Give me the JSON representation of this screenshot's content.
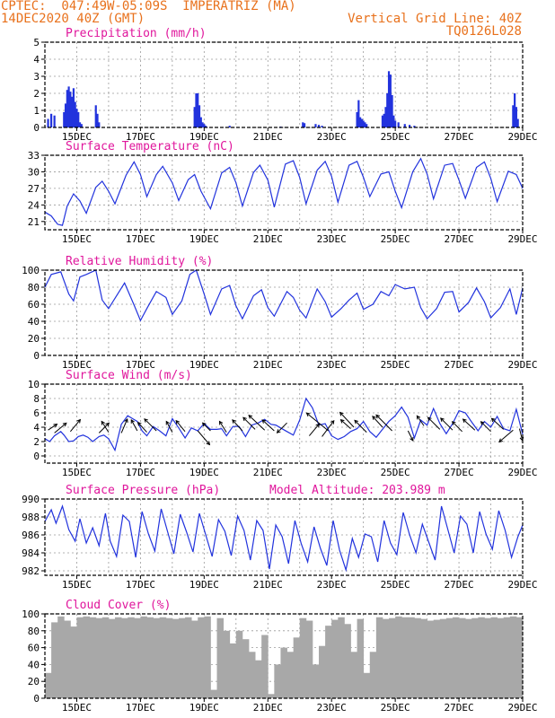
{
  "header": {
    "line1_left": "CPTEC:  047:49W-05:09S  IMPERATRIZ (MA)",
    "line2_left": "14DEC2020 40Z (GMT)",
    "line1_right": "Vertical Grid Line: 40Z",
    "line2_right": "TQ0126L028"
  },
  "colors": {
    "header": "#e8711c",
    "title": "#e0169c",
    "series": "#2233dd",
    "cloud": "#a8a8a8",
    "grid": "#9a9a9a"
  },
  "x_tick_labels": [
    "15DEC",
    "17DEC",
    "19DEC",
    "21DEC",
    "23DEC",
    "25DEC",
    "27DEC",
    "29DEC"
  ],
  "chart_data": [
    {
      "type": "bar",
      "title": "Precipitation (mm/h)",
      "ylim": [
        0,
        5
      ],
      "yticks": [
        0,
        1,
        2,
        3,
        4,
        5
      ],
      "xlim": [
        14,
        29
      ],
      "grid": true,
      "x": [
        14.1,
        14.2,
        14.3,
        14.6,
        14.65,
        14.7,
        14.75,
        14.8,
        14.85,
        14.9,
        14.95,
        15.0,
        15.05,
        15.1,
        15.15,
        15.6,
        15.65,
        15.7,
        18.7,
        18.75,
        18.8,
        18.85,
        18.9,
        18.95,
        19.0,
        19.05,
        19.8,
        21.4,
        22.1,
        22.15,
        22.5,
        22.6,
        22.7,
        23.8,
        23.85,
        23.9,
        23.95,
        24.0,
        24.05,
        24.1,
        24.6,
        24.65,
        24.7,
        24.75,
        24.8,
        24.85,
        24.9,
        24.95,
        25.0,
        25.1,
        25.3,
        25.45,
        25.6,
        28.7,
        28.75,
        28.8,
        28.85
      ],
      "values": [
        0.5,
        0.8,
        0.7,
        0.9,
        1.4,
        2.2,
        2.4,
        2.1,
        1.8,
        2.3,
        1.5,
        1.1,
        0.9,
        0.3,
        0.2,
        1.3,
        0.8,
        0.3,
        1.2,
        2.0,
        2.0,
        1.3,
        0.6,
        0.3,
        0.2,
        0.1,
        0.1,
        0.05,
        0.3,
        0.25,
        0.2,
        0.15,
        0.1,
        0.9,
        1.6,
        0.6,
        0.5,
        0.4,
        0.3,
        0.2,
        0.7,
        0.8,
        1.2,
        2.0,
        3.3,
        3.1,
        1.9,
        0.7,
        0.4,
        0.3,
        0.2,
        0.15,
        0.1,
        1.3,
        2.0,
        1.2,
        0.5
      ]
    },
    {
      "type": "line",
      "title": "Surface Temperature (nC)",
      "ylim": [
        19.5,
        33
      ],
      "yticks": [
        21,
        24,
        27,
        30,
        33
      ],
      "xlim": [
        14,
        29
      ],
      "grid": true,
      "x": [
        14.0,
        14.2,
        14.4,
        14.55,
        14.7,
        14.9,
        15.1,
        15.3,
        15.6,
        15.8,
        16.0,
        16.2,
        16.55,
        16.8,
        17.0,
        17.2,
        17.5,
        17.7,
        18.0,
        18.2,
        18.5,
        18.7,
        18.9,
        19.2,
        19.55,
        19.8,
        20.0,
        20.2,
        20.55,
        20.75,
        21.0,
        21.2,
        21.55,
        21.8,
        22.0,
        22.2,
        22.55,
        22.8,
        23.0,
        23.2,
        23.55,
        23.8,
        24.0,
        24.2,
        24.55,
        24.8,
        25.0,
        25.2,
        25.55,
        25.8,
        26.0,
        26.2,
        26.55,
        26.8,
        27.0,
        27.2,
        27.55,
        27.8,
        28.0,
        28.2,
        28.55,
        28.8,
        29.0
      ],
      "values": [
        22.7,
        22.0,
        20.5,
        20.3,
        23.8,
        26.0,
        24.7,
        22.5,
        27.2,
        28.3,
        26.5,
        24.2,
        29.4,
        31.8,
        29.5,
        25.5,
        29.5,
        31.0,
        28.0,
        24.8,
        28.6,
        29.5,
        26.5,
        23.3,
        29.8,
        30.8,
        28.0,
        23.8,
        29.9,
        31.2,
        28.5,
        23.6,
        31.4,
        32.0,
        29.0,
        24.2,
        30.3,
        31.9,
        29.2,
        24.5,
        31.2,
        31.9,
        29.0,
        25.5,
        29.6,
        30.0,
        26.5,
        23.5,
        30.0,
        32.4,
        29.6,
        25.1,
        31.2,
        31.5,
        28.5,
        25.2,
        30.8,
        31.8,
        28.8,
        24.6,
        30.1,
        29.5,
        27.0
      ]
    },
    {
      "type": "line",
      "title": "Relative Humidity (%)",
      "ylim": [
        0,
        100
      ],
      "yticks": [
        0,
        20,
        40,
        60,
        80,
        100
      ],
      "xlim": [
        14,
        29
      ],
      "grid": true,
      "x": [
        14.0,
        14.2,
        14.5,
        14.75,
        14.9,
        15.1,
        15.3,
        15.6,
        15.8,
        16.0,
        16.2,
        16.5,
        16.8,
        17.0,
        17.2,
        17.5,
        17.8,
        18.0,
        18.3,
        18.55,
        18.75,
        19.0,
        19.2,
        19.55,
        19.8,
        20.0,
        20.2,
        20.55,
        20.8,
        21.0,
        21.2,
        21.6,
        21.8,
        22.0,
        22.2,
        22.55,
        22.8,
        23.0,
        23.3,
        23.55,
        23.8,
        24.0,
        24.3,
        24.55,
        24.8,
        25.0,
        25.3,
        25.6,
        25.8,
        26.0,
        26.3,
        26.55,
        26.8,
        27.0,
        27.3,
        27.55,
        27.8,
        28.0,
        28.3,
        28.6,
        28.8,
        29.0
      ],
      "values": [
        80,
        95,
        98,
        72,
        64,
        92,
        95,
        100,
        65,
        55,
        67,
        85,
        59,
        41,
        55,
        75,
        68,
        48,
        64,
        95,
        100,
        72,
        48,
        78,
        82,
        58,
        43,
        70,
        77,
        56,
        46,
        75,
        68,
        53,
        44,
        78,
        63,
        45,
        55,
        65,
        73,
        54,
        60,
        75,
        70,
        83,
        78,
        80,
        56,
        43,
        55,
        74,
        75,
        51,
        62,
        79,
        63,
        44,
        56,
        78,
        48,
        79
      ]
    },
    {
      "type": "line",
      "title": "Surface Wind (m/s)",
      "ylim": [
        -1,
        10
      ],
      "yticks": [
        0,
        2,
        4,
        6,
        8,
        10
      ],
      "xlim": [
        14,
        29
      ],
      "grid": true,
      "x": [
        14.0,
        14.15,
        14.3,
        14.5,
        14.6,
        14.75,
        14.9,
        15.05,
        15.2,
        15.35,
        15.5,
        15.7,
        15.85,
        16.0,
        16.2,
        16.4,
        16.6,
        16.75,
        16.9,
        17.05,
        17.2,
        17.4,
        17.6,
        17.8,
        18.0,
        18.2,
        18.4,
        18.6,
        18.8,
        19.0,
        19.2,
        19.4,
        19.55,
        19.7,
        19.9,
        20.1,
        20.3,
        20.5,
        20.7,
        20.9,
        21.1,
        21.25,
        21.4,
        21.6,
        21.8,
        22.0,
        22.2,
        22.4,
        22.6,
        22.8,
        23.0,
        23.2,
        23.4,
        23.6,
        23.8,
        24.0,
        24.2,
        24.4,
        24.6,
        24.8,
        25.0,
        25.2,
        25.4,
        25.6,
        25.8,
        26.0,
        26.2,
        26.4,
        26.6,
        26.8,
        27.0,
        27.2,
        27.4,
        27.6,
        27.8,
        28.0,
        28.2,
        28.4,
        28.6,
        28.8,
        29.0
      ],
      "values": [
        2.4,
        2.0,
        2.8,
        3.4,
        2.9,
        2.0,
        2.1,
        2.7,
        2.9,
        2.6,
        2.0,
        2.7,
        2.9,
        2.4,
        0.8,
        4.4,
        5.6,
        5.2,
        4.8,
        3.5,
        2.8,
        4.1,
        3.5,
        2.8,
        5.2,
        3.9,
        2.5,
        3.9,
        3.5,
        4.5,
        3.7,
        3.7,
        3.8,
        2.8,
        4.1,
        4.1,
        2.7,
        4.3,
        4.6,
        5.1,
        4.4,
        4.3,
        3.9,
        3.4,
        2.9,
        5.0,
        8.0,
        6.7,
        4.3,
        4.5,
        2.8,
        2.3,
        2.7,
        3.4,
        3.8,
        4.8,
        3.4,
        2.6,
        3.7,
        4.8,
        5.6,
        6.8,
        5.4,
        2.5,
        5.0,
        4.3,
        6.6,
        4.5,
        3.1,
        4.5,
        6.3,
        6.0,
        4.7,
        3.5,
        4.8,
        4.0,
        5.5,
        3.8,
        3.5,
        6.5,
        3.0
      ],
      "vectors": [
        [
          14.1,
          3.6,
          0.45,
          0.3
        ],
        [
          14.3,
          3.2,
          0.6,
          0.5
        ],
        [
          14.8,
          3.4,
          0.5,
          0.6
        ],
        [
          15.7,
          3.2,
          0.5,
          0.5
        ],
        [
          16.0,
          3.3,
          -0.35,
          0.55
        ],
        [
          16.4,
          3.2,
          0.3,
          0.7
        ],
        [
          16.9,
          3.5,
          -0.3,
          0.55
        ],
        [
          17.2,
          3.3,
          -0.45,
          0.5
        ],
        [
          17.5,
          3.5,
          -0.6,
          0.6
        ],
        [
          18.0,
          3.3,
          -0.3,
          0.55
        ],
        [
          18.4,
          3.4,
          -0.45,
          0.55
        ],
        [
          18.8,
          3.5,
          0.6,
          -0.7
        ],
        [
          19.2,
          3.5,
          -0.4,
          0.4
        ],
        [
          19.7,
          3.3,
          -0.35,
          0.55
        ],
        [
          20.2,
          3.5,
          -0.5,
          0.55
        ],
        [
          20.6,
          3.7,
          -0.6,
          0.6
        ],
        [
          20.9,
          3.6,
          -0.8,
          0.75
        ],
        [
          21.2,
          3.5,
          -0.6,
          0.55
        ],
        [
          21.6,
          4.6,
          -0.5,
          -0.5
        ],
        [
          22.3,
          2.8,
          0.5,
          0.6
        ],
        [
          22.7,
          2.7,
          0.6,
          0.8
        ],
        [
          22.9,
          3.5,
          -1.1,
          0.9
        ],
        [
          23.6,
          3.8,
          -0.5,
          0.45
        ],
        [
          23.7,
          4.0,
          -0.7,
          0.75
        ],
        [
          24.1,
          3.3,
          -0.6,
          0.6
        ],
        [
          24.6,
          4.0,
          -0.5,
          0.55
        ],
        [
          24.9,
          3.5,
          -0.8,
          0.8
        ],
        [
          25.4,
          3.5,
          0.25,
          -0.5
        ],
        [
          25.9,
          4.2,
          -0.35,
          0.5
        ],
        [
          26.4,
          3.7,
          -0.6,
          0.6
        ],
        [
          26.8,
          3.6,
          -0.6,
          0.6
        ],
        [
          27.1,
          3.4,
          -0.5,
          0.5
        ],
        [
          27.5,
          3.6,
          -0.6,
          0.55
        ],
        [
          28.0,
          3.4,
          -0.5,
          0.5
        ],
        [
          28.4,
          3.7,
          -0.6,
          0.55
        ],
        [
          28.7,
          3.6,
          -0.7,
          -0.6
        ],
        [
          28.9,
          3.8,
          0.15,
          -0.6
        ]
      ]
    },
    {
      "type": "line",
      "title": "Surface Pressure (hPa)",
      "annotation": "Model Altitude: 203.989 m",
      "ylim": [
        981.5,
        990
      ],
      "yticks": [
        982,
        984,
        986,
        988,
        990
      ],
      "xlim": [
        14,
        29
      ],
      "grid": true,
      "x": [
        14.0,
        14.2,
        14.35,
        14.55,
        14.75,
        14.95,
        15.1,
        15.3,
        15.5,
        15.7,
        15.9,
        16.05,
        16.25,
        16.45,
        16.65,
        16.85,
        17.05,
        17.25,
        17.45,
        17.65,
        17.85,
        18.05,
        18.25,
        18.45,
        18.65,
        18.85,
        19.05,
        19.25,
        19.45,
        19.65,
        19.85,
        20.05,
        20.25,
        20.45,
        20.65,
        20.85,
        21.05,
        21.25,
        21.45,
        21.65,
        21.85,
        22.05,
        22.25,
        22.45,
        22.65,
        22.85,
        23.05,
        23.25,
        23.45,
        23.65,
        23.85,
        24.05,
        24.25,
        24.45,
        24.65,
        24.85,
        25.05,
        25.25,
        25.45,
        25.65,
        25.85,
        26.05,
        26.25,
        26.45,
        26.65,
        26.85,
        27.05,
        27.25,
        27.45,
        27.65,
        27.85,
        28.05,
        28.25,
        28.45,
        28.65,
        28.85,
        29.0
      ],
      "values": [
        987.5,
        988.8,
        987.3,
        989.2,
        986.6,
        985.3,
        987.8,
        985.1,
        986.8,
        984.8,
        988.4,
        985.3,
        983.6,
        988.2,
        987.5,
        983.5,
        988.6,
        986.1,
        984.2,
        988.9,
        986.4,
        983.9,
        988.3,
        986.3,
        984.1,
        988.4,
        986.0,
        983.6,
        987.7,
        986.4,
        983.7,
        988.1,
        986.5,
        983.2,
        987.6,
        986.5,
        982.2,
        987.1,
        985.8,
        982.8,
        987.6,
        985.0,
        983.0,
        986.9,
        984.5,
        982.6,
        987.6,
        984.3,
        982.1,
        985.6,
        983.5,
        986.1,
        985.8,
        983.0,
        987.6,
        985.1,
        983.8,
        988.5,
        986.0,
        984.0,
        987.2,
        985.2,
        983.2,
        989.2,
        986.6,
        984.0,
        988.1,
        987.2,
        984.0,
        988.6,
        986.1,
        984.4,
        988.7,
        986.5,
        983.5,
        985.8,
        987.1
      ]
    },
    {
      "type": "bar",
      "title": "Cloud Cover (%)",
      "ylim": [
        0,
        100
      ],
      "yticks": [
        0,
        20,
        40,
        60,
        80,
        100
      ],
      "xlim": [
        14,
        29
      ],
      "grid": true,
      "x": [
        14.0,
        14.2,
        14.4,
        14.6,
        14.8,
        15.0,
        15.2,
        15.4,
        15.6,
        15.8,
        16.0,
        16.2,
        16.4,
        16.6,
        16.8,
        17.0,
        17.2,
        17.4,
        17.6,
        17.8,
        18.0,
        18.2,
        18.4,
        18.6,
        18.8,
        19.0,
        19.2,
        19.4,
        19.6,
        19.8,
        20.0,
        20.2,
        20.4,
        20.6,
        20.8,
        21.0,
        21.2,
        21.4,
        21.6,
        21.8,
        22.0,
        22.2,
        22.4,
        22.6,
        22.8,
        23.0,
        23.2,
        23.4,
        23.6,
        23.8,
        24.0,
        24.2,
        24.4,
        24.6,
        24.8,
        25.0,
        25.2,
        25.4,
        25.6,
        25.8,
        26.0,
        26.2,
        26.4,
        26.6,
        26.8,
        27.0,
        27.2,
        27.4,
        27.6,
        27.8,
        28.0,
        28.2,
        28.4,
        28.6,
        28.8,
        29.0
      ],
      "values": [
        30,
        90,
        97,
        92,
        85,
        96,
        97,
        96,
        95,
        96,
        94,
        96,
        95,
        96,
        95,
        97,
        96,
        95,
        96,
        95,
        94,
        95,
        96,
        92,
        96,
        97,
        10,
        95,
        80,
        65,
        80,
        70,
        55,
        45,
        75,
        5,
        40,
        60,
        55,
        72,
        95,
        92,
        40,
        62,
        86,
        93,
        96,
        88,
        55,
        94,
        30,
        55,
        96,
        94,
        95,
        97,
        96,
        96,
        95,
        94,
        92,
        93,
        94,
        95,
        96,
        95,
        94,
        95,
        96,
        95,
        96,
        95,
        96,
        97,
        96,
        95
      ]
    }
  ]
}
